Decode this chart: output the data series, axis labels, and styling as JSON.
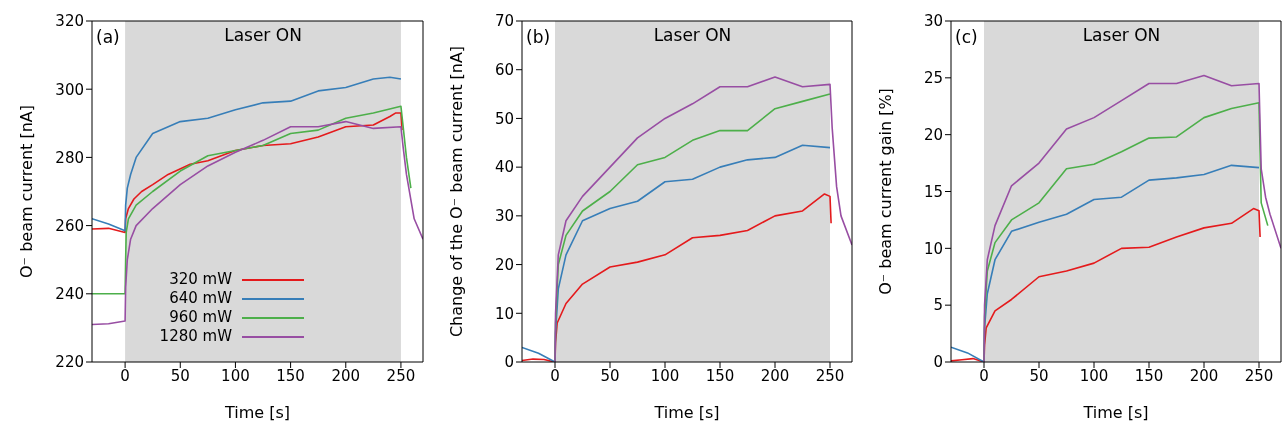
{
  "chart_data": [
    {
      "type": "line",
      "xlabel": "Time [s]",
      "ylabel": "O⁻ beam current [nA]",
      "xlim": [
        -30,
        270
      ],
      "xticks": [
        0,
        50,
        100,
        150,
        200,
        250
      ],
      "ylim": [
        220,
        320
      ],
      "yticks": [
        220,
        240,
        260,
        280,
        300,
        320
      ],
      "legend": "bottom",
      "annotations": [
        "(a)"
      ],
      "bands": [
        {
          "axis": "x",
          "from": 0,
          "to": 250,
          "label": "Laser ON",
          "color": "#d9d9d9"
        }
      ],
      "series": [
        {
          "name": "320 mW",
          "color": "#e41a1c",
          "x": [
            -30,
            -15,
            0,
            0.5,
            3,
            8,
            15,
            25,
            39,
            59,
            75,
            100,
            125,
            150,
            175,
            200,
            225,
            240,
            245,
            250,
            251
          ],
          "values": [
            259,
            259.2,
            258,
            262,
            265,
            267.8,
            270,
            272,
            275,
            278,
            279,
            282,
            283.5,
            284,
            286,
            289,
            289.5,
            292,
            293,
            293,
            288
          ]
        },
        {
          "name": "640 mW",
          "color": "#377eb8",
          "x": [
            -30,
            -15,
            0,
            0.5,
            2,
            5,
            10,
            25,
            50,
            75,
            100,
            125,
            150,
            175,
            200,
            225,
            240,
            250
          ],
          "values": [
            262,
            260.5,
            258.5,
            266,
            271,
            275,
            280,
            287,
            290.5,
            291.5,
            294,
            296,
            296.5,
            299.5,
            300.5,
            303,
            303.5,
            303
          ]
        },
        {
          "name": "960 mW",
          "color": "#4daf4a",
          "x": [
            -30,
            -15,
            0,
            0.5,
            1,
            3,
            10,
            25,
            50,
            75,
            100,
            125,
            150,
            175,
            200,
            225,
            250,
            252,
            255,
            259
          ],
          "values": [
            240,
            240,
            240,
            250,
            258,
            262,
            266,
            270,
            276,
            280.5,
            282,
            283.5,
            287,
            288,
            291.5,
            293,
            295,
            289,
            280,
            271
          ]
        },
        {
          "name": "1280 mW",
          "color": "#984ea3",
          "x": [
            -30,
            -15,
            0,
            0.5,
            2,
            5,
            10,
            25,
            50,
            75,
            100,
            125,
            150,
            175,
            200,
            225,
            250,
            252,
            255,
            262,
            270
          ],
          "values": [
            231,
            231.2,
            232,
            242,
            250,
            256,
            260,
            265,
            272,
            277.5,
            281.5,
            285,
            289,
            289,
            290.5,
            288.5,
            289,
            283,
            275,
            262,
            256
          ]
        }
      ]
    },
    {
      "type": "line",
      "xlabel": "Time [s]",
      "ylabel": "Change of the O⁻ beam current [nA]",
      "xlim": [
        -30,
        270
      ],
      "xticks": [
        0,
        50,
        100,
        150,
        200,
        250
      ],
      "ylim": [
        0,
        70
      ],
      "yticks": [
        0,
        10,
        20,
        30,
        40,
        50,
        60,
        70
      ],
      "annotations": [
        "(b)"
      ],
      "bands": [
        {
          "axis": "x",
          "from": 0,
          "to": 250,
          "label": "Laser ON",
          "color": "#d9d9d9"
        }
      ],
      "series": [
        {
          "color": "#e41a1c",
          "x": [
            -30,
            -20,
            -10,
            0,
            0.5,
            2,
            10,
            25,
            50,
            75,
            100,
            125,
            150,
            175,
            200,
            225,
            245,
            250,
            251
          ],
          "values": [
            0.3,
            0.6,
            0.5,
            0,
            4,
            8,
            12,
            16,
            19.5,
            20.5,
            22,
            25.5,
            26,
            27,
            30,
            31,
            34.5,
            34,
            28.5
          ]
        },
        {
          "color": "#377eb8",
          "x": [
            -30,
            -15,
            0,
            0.5,
            3,
            10,
            25,
            50,
            75,
            100,
            125,
            150,
            175,
            200,
            225,
            250
          ],
          "values": [
            3,
            1.8,
            0,
            6,
            15,
            22,
            29,
            31.5,
            33,
            37,
            37.5,
            40,
            41.5,
            42,
            44.5,
            44
          ]
        },
        {
          "color": "#4daf4a",
          "x": [
            0,
            0.5,
            3,
            10,
            25,
            50,
            75,
            100,
            125,
            150,
            175,
            200,
            225,
            250
          ],
          "values": [
            0,
            8,
            20,
            26,
            31,
            35,
            40.5,
            42,
            45.5,
            47.5,
            47.5,
            52,
            53.5,
            55
          ]
        },
        {
          "color": "#984ea3",
          "x": [
            0,
            0.5,
            3,
            10,
            25,
            50,
            75,
            100,
            125,
            150,
            175,
            200,
            225,
            250,
            252,
            256,
            260,
            270
          ],
          "values": [
            0,
            10,
            22,
            29,
            34,
            40,
            46,
            50,
            53,
            56.5,
            56.5,
            58.5,
            56.5,
            57,
            48,
            36,
            30,
            24
          ]
        }
      ]
    },
    {
      "type": "line",
      "xlabel": "Time [s]",
      "ylabel": "O⁻ beam current gain [%]",
      "xlim": [
        -30,
        270
      ],
      "xticks": [
        0,
        50,
        100,
        150,
        200,
        250
      ],
      "ylim": [
        0,
        30
      ],
      "yticks": [
        0,
        5,
        10,
        15,
        20,
        25,
        30
      ],
      "annotations": [
        "(c)"
      ],
      "bands": [
        {
          "axis": "x",
          "from": 0,
          "to": 250,
          "label": "Laser ON",
          "color": "#d9d9d9"
        }
      ],
      "series": [
        {
          "color": "#e41a1c",
          "x": [
            -30,
            -20,
            -10,
            0,
            0.5,
            2,
            10,
            25,
            50,
            75,
            100,
            125,
            150,
            175,
            200,
            225,
            245,
            250,
            251
          ],
          "values": [
            0.1,
            0.2,
            0.3,
            0,
            1.5,
            3,
            4.5,
            5.5,
            7.5,
            8,
            8.7,
            10,
            10.1,
            11,
            11.8,
            12.2,
            13.5,
            13.3,
            11
          ]
        },
        {
          "color": "#377eb8",
          "x": [
            -30,
            -15,
            0,
            0.5,
            3,
            10,
            25,
            50,
            75,
            100,
            125,
            150,
            175,
            200,
            225,
            250
          ],
          "values": [
            1.3,
            0.8,
            0,
            3,
            6,
            9,
            11.5,
            12.3,
            13,
            14.3,
            14.5,
            16,
            16.2,
            16.5,
            17.3,
            17.1
          ]
        },
        {
          "color": "#4daf4a",
          "x": [
            0,
            0.5,
            3,
            10,
            25,
            50,
            75,
            100,
            125,
            150,
            175,
            200,
            225,
            250,
            252,
            258
          ],
          "values": [
            0,
            4,
            8,
            10.5,
            12.5,
            14,
            17,
            17.4,
            18.5,
            19.7,
            19.8,
            21.5,
            22.3,
            22.8,
            14,
            12
          ]
        },
        {
          "color": "#984ea3",
          "x": [
            0,
            0.5,
            3,
            10,
            25,
            50,
            75,
            100,
            125,
            150,
            175,
            200,
            225,
            250,
            252,
            256,
            260,
            270
          ],
          "values": [
            0,
            5,
            9,
            12,
            15.5,
            17.5,
            20.5,
            21.5,
            23,
            24.5,
            24.5,
            25.2,
            24.3,
            24.5,
            17,
            14.5,
            13,
            10
          ]
        }
      ]
    }
  ]
}
